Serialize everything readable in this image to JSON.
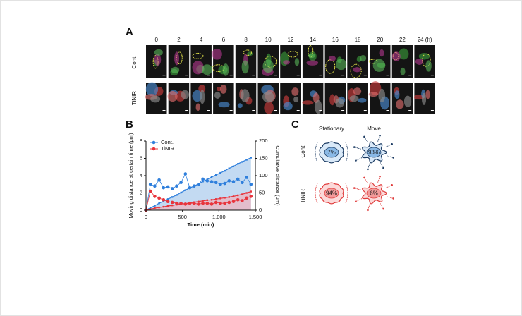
{
  "panel_labels": [
    "A",
    "B",
    "C"
  ],
  "panel_a": {
    "time_labels": [
      "0",
      "2",
      "4",
      "6",
      "8",
      "10",
      "12",
      "14",
      "16",
      "18",
      "20",
      "22",
      "24 (h)"
    ],
    "row_labels": [
      "Cont.",
      "TiNIR"
    ]
  },
  "chart_data": {
    "type": "line",
    "x": [
      0,
      60,
      120,
      180,
      240,
      300,
      360,
      420,
      480,
      540,
      600,
      660,
      720,
      780,
      840,
      900,
      960,
      1020,
      1080,
      1140,
      1200,
      1260,
      1320,
      1380,
      1440
    ],
    "series": [
      {
        "name": "Cont.",
        "color": "#2f7fdc",
        "values": [
          0,
          3.0,
          2.8,
          3.5,
          2.6,
          2.7,
          2.5,
          2.8,
          3.2,
          4.2,
          2.6,
          2.8,
          3.0,
          3.6,
          3.4,
          3.3,
          3.2,
          3.0,
          3.1,
          3.4,
          3.3,
          3.6,
          3.2,
          3.8,
          3.0
        ]
      },
      {
        "name": "TiNIR",
        "color": "#e8343c",
        "values": [
          0,
          2.2,
          1.6,
          1.4,
          1.2,
          1.0,
          0.9,
          0.8,
          0.8,
          0.7,
          0.8,
          0.8,
          0.7,
          0.8,
          0.8,
          0.7,
          0.9,
          0.8,
          0.8,
          0.9,
          1.0,
          1.2,
          1.1,
          1.4,
          1.6
        ]
      },
      {
        "name": "Cont.",
        "color": "#2f7fdc",
        "axis": "y2",
        "values": [
          0,
          7,
          13,
          20,
          26,
          32,
          38,
          44,
          51,
          58,
          64,
          70,
          76,
          83,
          89,
          96,
          102,
          108,
          114,
          121,
          127,
          134,
          140,
          146,
          152
        ]
      },
      {
        "name": "TiNIR",
        "color": "#e8343c",
        "axis": "y2",
        "values": [
          0,
          3,
          6,
          8,
          10,
          12,
          14,
          16,
          18,
          19,
          21,
          23,
          25,
          27,
          29,
          30,
          32,
          34,
          36,
          38,
          40,
          43,
          46,
          50,
          54
        ]
      }
    ],
    "xlim": [
      0,
      1500
    ],
    "xticks": [
      0,
      500,
      {
        "value": 1000,
        "label": "1,000"
      },
      {
        "value": 1500,
        "label": "1,500"
      }
    ],
    "ylim": [
      0,
      8
    ],
    "yticks": [
      0,
      2,
      4,
      6,
      8
    ],
    "y2lim": [
      0,
      200
    ],
    "y2ticks": [
      0,
      50,
      100,
      150,
      200
    ],
    "xlabel": "Time (min)",
    "ylabel": "Moving distance at certain time (μm)",
    "y2label": "Cumulative distance (μm)",
    "legend": "upper left"
  },
  "panel_c": {
    "column_labels": [
      "Stationary",
      "Move"
    ],
    "row_labels": [
      "Cont.",
      "TiNIR"
    ],
    "cells": [
      [
        "7%",
        "93%"
      ],
      [
        "94%",
        "6%"
      ]
    ]
  }
}
